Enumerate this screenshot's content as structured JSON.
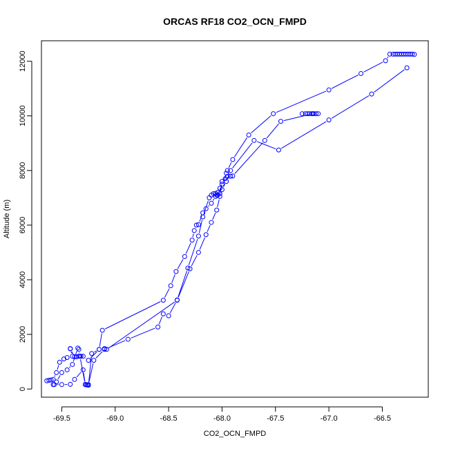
{
  "chart_data": {
    "type": "line",
    "title": "ORCAS RF18 CO2_OCN_FMPD",
    "xlabel": "CO2_OCN_FMPD",
    "ylabel": "Altitude (m)",
    "xlim": [
      -69.69,
      -66.07
    ],
    "ylim": [
      -300,
      12750
    ],
    "x_ticks": [
      -69.5,
      -69.0,
      -68.5,
      -68.0,
      -67.5,
      -67.0,
      -66.5
    ],
    "x_tick_labels": [
      "-69.5",
      "-69.0",
      "-68.5",
      "-68.0",
      "-67.5",
      "-67.0",
      "-66.5"
    ],
    "y_ticks": [
      0,
      2000,
      4000,
      6000,
      8000,
      10000,
      12000
    ],
    "y_tick_labels": [
      "0",
      "2000",
      "4000",
      "6000",
      "8000",
      "10000",
      "12000"
    ],
    "grid": false,
    "color": "#0000ff",
    "series": [
      {
        "x": [
          -66.2,
          -66.22,
          -66.24,
          -66.26,
          -66.28,
          -66.3,
          -66.32,
          -66.34,
          -66.36,
          -66.38,
          -66.4,
          -66.43,
          -66.47,
          -66.7,
          -67.0,
          -67.52,
          -67.75,
          -67.9,
          -67.95,
          -67.96,
          -68.0,
          -68.02,
          -68.04,
          -68.05,
          -68.06,
          -68.1,
          -68.15,
          -68.18,
          -68.22,
          -68.24,
          -68.26,
          -68.28,
          -68.35,
          -68.43,
          -68.48,
          -68.55,
          -69.12,
          -69.15,
          -69.25,
          -69.3,
          -69.32,
          -69.34,
          -69.36,
          -69.38,
          -69.42,
          -69.42,
          -69.4,
          -69.45,
          -69.48,
          -69.52,
          -69.55,
          -69.58,
          -69.6,
          -69.62,
          -69.64
        ],
        "y": [
          12250,
          12260,
          12260,
          12260,
          12260,
          12260,
          12260,
          12260,
          12260,
          12260,
          12260,
          12260,
          12020,
          11550,
          10950,
          10080,
          9300,
          8400,
          8000,
          7900,
          7500,
          7350,
          7200,
          7100,
          7050,
          6800,
          6600,
          6450,
          6020,
          6000,
          5800,
          5450,
          4850,
          4300,
          3780,
          3250,
          2150,
          1450,
          1050,
          1200,
          1200,
          1200,
          1180,
          1180,
          1470,
          1480,
          1200,
          1150,
          1100,
          980,
          600,
          350,
          330,
          320,
          300
        ]
      },
      {
        "x": [
          -69.57,
          -69.5,
          -69.42,
          -69.38,
          -69.3,
          -69.28,
          -69.25,
          -69.2,
          -69.1,
          -68.88,
          -68.6,
          -68.55,
          -68.5,
          -68.42,
          -68.32,
          -68.22,
          -68.18,
          -68.12,
          -68.1,
          -68.08,
          -68.06,
          -68.04,
          -68.02,
          -68.0,
          -67.97,
          -67.95,
          -67.92,
          -67.9,
          -67.6,
          -67.45,
          -67.15,
          -67.1,
          -67.12,
          -67.14,
          -67.16,
          -67.18,
          -67.2,
          -67.22,
          -67.25
        ],
        "y": [
          160,
          160,
          170,
          350,
          700,
          170,
          160,
          1050,
          1450,
          1820,
          2270,
          2750,
          2680,
          3260,
          4430,
          5600,
          6300,
          7000,
          7100,
          7150,
          7160,
          7100,
          7150,
          7600,
          7700,
          7780,
          7790,
          7800,
          9100,
          9800,
          10080,
          10080,
          10080,
          10080,
          10080,
          10080,
          10080,
          10080,
          10080
        ]
      },
      {
        "x": [
          -69.58,
          -69.55,
          -69.5,
          -69.45,
          -69.4,
          -69.35,
          -69.34,
          -69.33,
          -69.28,
          -69.27,
          -69.26,
          -69.25,
          -69.22,
          -69.15,
          -69.1,
          -69.08,
          -68.42,
          -68.3,
          -68.22,
          -68.15,
          -68.1,
          -68.05,
          -68.02,
          -68.0,
          -67.96,
          -67.92,
          -67.7,
          -67.47,
          -67.0,
          -66.6,
          -66.27
        ],
        "y": [
          160,
          260,
          600,
          700,
          900,
          1500,
          1450,
          1200,
          160,
          150,
          150,
          140,
          1300,
          1450,
          1480,
          1450,
          3250,
          4400,
          5000,
          5650,
          6100,
          6550,
          7050,
          7300,
          7600,
          8000,
          9100,
          8750,
          9850,
          10800,
          11760
        ]
      }
    ]
  }
}
